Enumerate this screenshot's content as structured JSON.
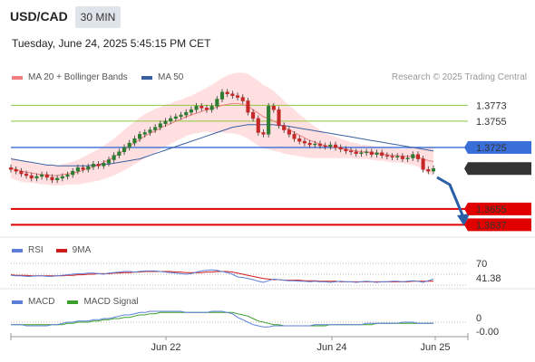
{
  "header": {
    "symbol": "USD/CAD",
    "interval": "30 MIN",
    "datetime": "Tuesday, June 24, 2025 5:45:15 PM CET"
  },
  "legend": {
    "bollinger": "MA 20 + Bollinger Bands",
    "ma50": "MA 50",
    "copyright": "Research © 2025 Trading Central"
  },
  "colors": {
    "bull": "#2e7d32",
    "bear": "#c62828",
    "bollinger": "#ffd7d7",
    "ma20": "#f08080",
    "ma50": "#3a5fa0",
    "resistance": "#8dc63f",
    "pivot": "#3a6ed8",
    "support": "#e00000",
    "current": "#333333",
    "rsi": "#5b7fd6",
    "rsi_ma": "#d11a1a",
    "macd": "#5b7fd6",
    "macd_signal": "#3aa02a"
  },
  "chart_data": {
    "type": "candlestick",
    "price_range": [
      1.3625,
      1.3795
    ],
    "x_labels": [
      "Jun 22",
      "Jun 24",
      "Jun 25"
    ],
    "levels": {
      "resistance": [
        1.3773,
        1.3755
      ],
      "pivot": 1.3725,
      "current": 1.3701,
      "support": [
        1.3655,
        1.3637
      ]
    },
    "level_labels": {
      "r1": "1.3773",
      "r2": "1.3755",
      "pivot": "1.3725",
      "current": "1.3701",
      "s1": "1.3655",
      "s2": "1.3637"
    },
    "closes": [
      1.37,
      1.3698,
      1.3695,
      1.3693,
      1.369,
      1.3692,
      1.3694,
      1.3691,
      1.3688,
      1.369,
      1.3692,
      1.3694,
      1.3698,
      1.3702,
      1.37,
      1.3703,
      1.3706,
      1.3704,
      1.3707,
      1.3711,
      1.3716,
      1.372,
      1.3725,
      1.373,
      1.3735,
      1.374,
      1.3742,
      1.3745,
      1.3748,
      1.3752,
      1.3755,
      1.3758,
      1.376,
      1.3762,
      1.3765,
      1.3768,
      1.3772,
      1.377,
      1.3768,
      1.3772,
      1.378,
      1.3788,
      1.3786,
      1.3784,
      1.3782,
      1.3778,
      1.3765,
      1.3758,
      1.3742,
      1.374,
      1.3772,
      1.3768,
      1.375,
      1.3745,
      1.374,
      1.3735,
      1.3732,
      1.373,
      1.3728,
      1.3729,
      1.3727,
      1.3726,
      1.3728,
      1.3725,
      1.3723,
      1.3721,
      1.372,
      1.3718,
      1.3719,
      1.372,
      1.3717,
      1.3719,
      1.3716,
      1.3715,
      1.3714,
      1.3715,
      1.3712,
      1.3713,
      1.3717,
      1.3712,
      1.37,
      1.3698,
      1.3701
    ],
    "bollinger_ma20": [
      1.3702,
      1.37,
      1.3698,
      1.3697,
      1.3696,
      1.3695,
      1.3694,
      1.3694,
      1.3693,
      1.3693,
      1.3694,
      1.3695,
      1.3696,
      1.3697,
      1.3699,
      1.3701,
      1.3703,
      1.3705,
      1.3708,
      1.3711,
      1.3714,
      1.3718,
      1.3722,
      1.3726,
      1.373,
      1.3734,
      1.3738,
      1.3741,
      1.3744,
      1.3747,
      1.375,
      1.3752,
      1.3755,
      1.3757,
      1.376,
      1.3762,
      1.3764,
      1.3766,
      1.3768,
      1.3769,
      1.3771,
      1.3773,
      1.3774,
      1.3775,
      1.3775,
      1.3774,
      1.3772,
      1.3768,
      1.3764,
      1.376,
      1.3758,
      1.3755,
      1.3752,
      1.3748,
      1.3745,
      1.3742,
      1.3739,
      1.3736,
      1.3733,
      1.3731,
      1.3729,
      1.3727,
      1.3726,
      1.3725,
      1.3724,
      1.3723,
      1.3722,
      1.3721,
      1.372,
      1.372,
      1.3719,
      1.3718,
      1.3718,
      1.3717,
      1.3716,
      1.3716,
      1.3715,
      1.3715,
      1.3715,
      1.3714,
      1.3712,
      1.371,
      1.3709
    ],
    "bollinger_width": [
      0.0012,
      0.0012,
      0.0012,
      0.0012,
      0.0011,
      0.0011,
      0.0011,
      0.0011,
      0.0011,
      0.0011,
      0.0012,
      0.0012,
      0.0013,
      0.0014,
      0.0015,
      0.0016,
      0.0017,
      0.0018,
      0.0019,
      0.002,
      0.0021,
      0.0022,
      0.0023,
      0.0024,
      0.0024,
      0.0025,
      0.0025,
      0.0025,
      0.0025,
      0.0024,
      0.0024,
      0.0023,
      0.0023,
      0.0022,
      0.0022,
      0.0022,
      0.0023,
      0.0024,
      0.0025,
      0.0027,
      0.0029,
      0.0031,
      0.0033,
      0.0034,
      0.0035,
      0.0036,
      0.0037,
      0.0037,
      0.0037,
      0.0036,
      0.0035,
      0.0034,
      0.0032,
      0.003,
      0.0028,
      0.0026,
      0.0024,
      0.0022,
      0.002,
      0.0018,
      0.0016,
      0.0014,
      0.0013,
      0.0012,
      0.0011,
      0.001,
      0.0009,
      0.0009,
      0.0008,
      0.0008,
      0.0008,
      0.0008,
      0.0008,
      0.0008,
      0.0008,
      0.0008,
      0.0008,
      0.0009,
      0.001,
      0.0011,
      0.0013,
      0.0015,
      0.0016
    ],
    "ma50": [
      1.3712,
      1.3711,
      1.371,
      1.3709,
      1.3708,
      1.3707,
      1.3706,
      1.3705,
      1.3705,
      1.3704,
      1.3704,
      1.3704,
      1.3704,
      1.3704,
      1.3704,
      1.3704,
      1.3705,
      1.3705,
      1.3706,
      1.3706,
      1.3707,
      1.3708,
      1.3709,
      1.371,
      1.3711,
      1.3712,
      1.3714,
      1.3716,
      1.3718,
      1.372,
      1.3722,
      1.3724,
      1.3726,
      1.3728,
      1.373,
      1.3732,
      1.3734,
      1.3736,
      1.3738,
      1.374,
      1.3742,
      1.3744,
      1.3746,
      1.3748,
      1.3749,
      1.375,
      1.3751,
      1.3751,
      1.3751,
      1.3751,
      1.3751,
      1.3751,
      1.375,
      1.375,
      1.3749,
      1.3748,
      1.3747,
      1.3746,
      1.3745,
      1.3744,
      1.3743,
      1.3742,
      1.3741,
      1.374,
      1.3739,
      1.3738,
      1.3737,
      1.3736,
      1.3735,
      1.3734,
      1.3733,
      1.3732,
      1.3731,
      1.373,
      1.3729,
      1.3728,
      1.3727,
      1.3726,
      1.3725,
      1.3724,
      1.3723,
      1.3722,
      1.3721
    ],
    "rsi": {
      "label": "RSI",
      "ma_label": "9MA",
      "level_label": "70",
      "value_label": "41.38",
      "range": [
        25,
        80
      ],
      "values": [
        48,
        47,
        47,
        46,
        46,
        47,
        47,
        46,
        46,
        47,
        48,
        49,
        50,
        51,
        51,
        52,
        52,
        51,
        50,
        52,
        53,
        54,
        55,
        55,
        54,
        55,
        56,
        56,
        56,
        55,
        54,
        53,
        52,
        51,
        50,
        51,
        54,
        56,
        57,
        58,
        57,
        55,
        53,
        50,
        45,
        44,
        42,
        40,
        37,
        35,
        38,
        41,
        40,
        39,
        38,
        38,
        37,
        37,
        36,
        37,
        36,
        36,
        35,
        36,
        37,
        36,
        36,
        35,
        36,
        37,
        36,
        35,
        36,
        36,
        37,
        37,
        36,
        37,
        38,
        37,
        35,
        38,
        41
      ],
      "ma": [
        49,
        48,
        48,
        48,
        47,
        47,
        47,
        47,
        47,
        47,
        47,
        48,
        48,
        49,
        49,
        50,
        50,
        51,
        51,
        51,
        52,
        52,
        53,
        53,
        54,
        54,
        55,
        55,
        55,
        55,
        55,
        55,
        54,
        54,
        53,
        53,
        53,
        53,
        54,
        54,
        55,
        55,
        55,
        54,
        52,
        50,
        48,
        46,
        44,
        42,
        41,
        40,
        40,
        39,
        39,
        39,
        39,
        38,
        38,
        38,
        37,
        37,
        37,
        37,
        36,
        36,
        36,
        36,
        36,
        36,
        36,
        36,
        36,
        36,
        36,
        36,
        36,
        36,
        37,
        37,
        37,
        37,
        37
      ]
    },
    "macd": {
      "label": "MACD",
      "signal_label": "MACD Signal",
      "zero_label": "0",
      "value_label": "-0.00",
      "range": [
        -0.0012,
        0.0012
      ],
      "values": [
        -0.0002,
        -0.0002,
        -0.0002,
        -0.0003,
        -0.0003,
        -0.0003,
        -0.0003,
        -0.0003,
        -0.0002,
        -0.0002,
        -0.0001,
        0,
        0,
        0.0001,
        0.0001,
        0.0001,
        0.0002,
        0.0002,
        0.0003,
        0.0003,
        0.0004,
        0.0005,
        0.0006,
        0.0006,
        0.0007,
        0.0008,
        0.0008,
        0.0009,
        0.0009,
        0.0009,
        0.0009,
        0.0009,
        0.0009,
        0.0009,
        0.0008,
        0.0008,
        0.0008,
        0.0008,
        0.0008,
        0.0009,
        0.0009,
        0.0009,
        0.0008,
        0.0007,
        0.0004,
        0.0002,
        0,
        -0.0002,
        -0.0003,
        -0.0004,
        -0.0004,
        -0.0003,
        -0.0003,
        -0.0003,
        -0.0003,
        -0.0003,
        -0.0003,
        -0.0003,
        -0.0003,
        -0.0002,
        -0.0002,
        -0.0002,
        -0.0002,
        -0.0002,
        -0.0002,
        -0.0002,
        -0.0002,
        -0.0002,
        -0.0002,
        -0.0001,
        -0.0001,
        -0.0001,
        -0.0001,
        -0.0001,
        -0.0001,
        -0.0001,
        0,
        0,
        0,
        -0.0001,
        -0.0001,
        -0.0001,
        -0.0001
      ],
      "signal": [
        -0.0002,
        -0.0002,
        -0.0002,
        -0.0002,
        -0.0002,
        -0.0002,
        -0.0002,
        -0.0002,
        -0.0002,
        -0.0002,
        -0.0002,
        -0.0001,
        -0.0001,
        0,
        0,
        0,
        0.0001,
        0.0001,
        0.0002,
        0.0002,
        0.0003,
        0.0003,
        0.0004,
        0.0004,
        0.0005,
        0.0006,
        0.0006,
        0.0007,
        0.0007,
        0.0008,
        0.0008,
        0.0008,
        0.0008,
        0.0008,
        0.0008,
        0.0008,
        0.0008,
        0.0008,
        0.0008,
        0.0008,
        0.0008,
        0.0008,
        0.0008,
        0.0008,
        0.0007,
        0.0006,
        0.0005,
        0.0003,
        0.0001,
        0,
        -0.0001,
        -0.0002,
        -0.0002,
        -0.0003,
        -0.0003,
        -0.0003,
        -0.0003,
        -0.0003,
        -0.0003,
        -0.0003,
        -0.0003,
        -0.0003,
        -0.0002,
        -0.0002,
        -0.0002,
        -0.0002,
        -0.0002,
        -0.0002,
        -0.0002,
        -0.0002,
        -0.0002,
        -0.0001,
        -0.0001,
        -0.0001,
        -0.0001,
        -0.0001,
        -0.0001,
        -0.0001,
        -0.0001,
        -0.0001,
        -0.0001,
        -0.0001,
        -0.0001
      ]
    }
  }
}
